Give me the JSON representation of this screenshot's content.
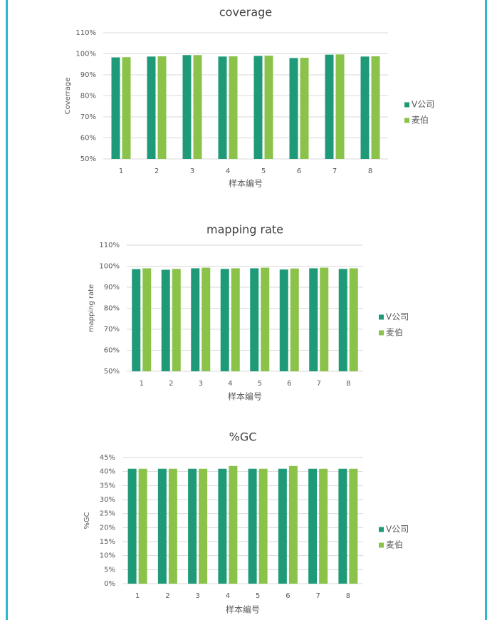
{
  "chart_data": [
    {
      "type": "bar",
      "title": "coverage",
      "x_label": "样本编号",
      "y_label": "Coverrage",
      "categories": [
        "1",
        "2",
        "3",
        "4",
        "5",
        "6",
        "7",
        "8"
      ],
      "series": [
        {
          "name": "V公司",
          "color": "#1f9a78",
          "values": [
            98.3,
            98.7,
            99.4,
            98.7,
            99.0,
            98.0,
            99.6,
            98.7
          ]
        },
        {
          "name": "麦伯",
          "color": "#8bc24a",
          "values": [
            98.4,
            98.8,
            99.4,
            98.8,
            99.1,
            98.1,
            99.7,
            98.8
          ]
        }
      ],
      "ylim": [
        50,
        110
      ],
      "yticks": [
        {
          "value": 50,
          "label": "50%"
        },
        {
          "value": 60,
          "label": "60%"
        },
        {
          "value": 70,
          "label": "70%"
        },
        {
          "value": 80,
          "label": "80%"
        },
        {
          "value": 90,
          "label": "90%"
        },
        {
          "value": 100,
          "label": "100%"
        },
        {
          "value": 110,
          "label": "110%"
        }
      ],
      "grid": true,
      "legend": "right"
    },
    {
      "type": "bar",
      "title": "mapping rate",
      "x_label": "样本编号",
      "y_label": "mapping rate",
      "categories": [
        "1",
        "2",
        "3",
        "4",
        "5",
        "6",
        "7",
        "8"
      ],
      "series": [
        {
          "name": "V公司",
          "color": "#1f9a78",
          "values": [
            98.6,
            98.3,
            99.0,
            98.7,
            99.0,
            98.4,
            99.0,
            98.7
          ]
        },
        {
          "name": "麦伯",
          "color": "#8bc24a",
          "values": [
            99.0,
            98.7,
            99.3,
            99.0,
            99.3,
            98.9,
            99.3,
            99.0
          ]
        }
      ],
      "ylim": [
        50,
        110
      ],
      "yticks": [
        {
          "value": 50,
          "label": "50%"
        },
        {
          "value": 60,
          "label": "60%"
        },
        {
          "value": 70,
          "label": "70%"
        },
        {
          "value": 80,
          "label": "80%"
        },
        {
          "value": 90,
          "label": "90%"
        },
        {
          "value": 100,
          "label": "100%"
        },
        {
          "value": 110,
          "label": "110%"
        }
      ],
      "grid": true,
      "legend": "right"
    },
    {
      "type": "bar",
      "title": "%GC",
      "x_label": "样本编号",
      "y_label": "%GC",
      "categories": [
        "1",
        "2",
        "3",
        "4",
        "5",
        "6",
        "7",
        "8"
      ],
      "series": [
        {
          "name": "V公司",
          "color": "#1f9a78",
          "values": [
            41,
            41,
            41,
            41,
            41,
            41,
            41,
            41
          ]
        },
        {
          "name": "麦伯",
          "color": "#8bc24a",
          "values": [
            41,
            41,
            41,
            42,
            41,
            42,
            41,
            41
          ]
        }
      ],
      "ylim": [
        0,
        45
      ],
      "yticks": [
        {
          "value": 0,
          "label": "0%"
        },
        {
          "value": 5,
          "label": "5%"
        },
        {
          "value": 10,
          "label": "10%"
        },
        {
          "value": 15,
          "label": "15%"
        },
        {
          "value": 20,
          "label": "20%"
        },
        {
          "value": 25,
          "label": "25%"
        },
        {
          "value": 30,
          "label": "30%"
        },
        {
          "value": 35,
          "label": "35%"
        },
        {
          "value": 40,
          "label": "40%"
        },
        {
          "value": 45,
          "label": "45%"
        }
      ],
      "grid": true,
      "legend": "right"
    }
  ]
}
